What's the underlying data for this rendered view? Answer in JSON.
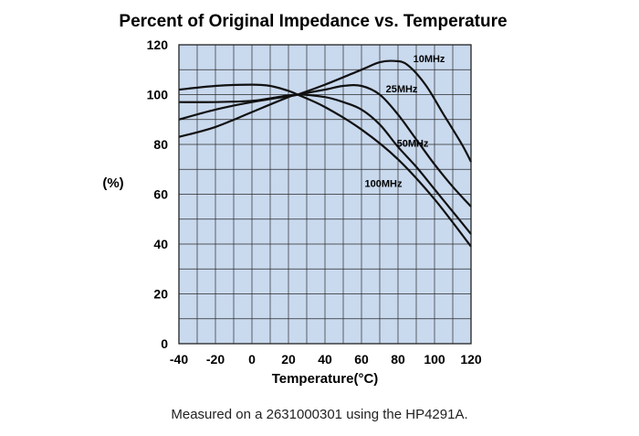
{
  "chart_data": {
    "type": "line",
    "title": "Percent of Original Impedance vs. Temperature",
    "xlabel": "Temperature(°C)",
    "ylabel": "(%)",
    "xlim": [
      -40,
      120
    ],
    "ylim": [
      0,
      120
    ],
    "x_ticks": [
      "-40",
      "-20",
      "0",
      "20",
      "40",
      "60",
      "80",
      "100",
      "120"
    ],
    "y_ticks": [
      "0",
      "20",
      "40",
      "60",
      "80",
      "100",
      "120"
    ],
    "x_tick_values": [
      -40,
      -20,
      0,
      20,
      40,
      60,
      80,
      100,
      120
    ],
    "y_tick_values": [
      0,
      20,
      40,
      60,
      80,
      100,
      120
    ],
    "grid": true,
    "plot_background": "#c9d9ee",
    "line_color": "#111111",
    "series": [
      {
        "name": "10MHz",
        "x": [
          -40,
          -20,
          0,
          20,
          25,
          40,
          60,
          70,
          78,
          85,
          95,
          105,
          115,
          120
        ],
        "y": [
          83,
          87,
          93,
          99,
          100,
          104,
          110,
          113,
          113.5,
          112,
          104,
          92,
          80,
          73
        ]
      },
      {
        "name": "25MHz",
        "x": [
          -40,
          -20,
          0,
          25,
          40,
          50,
          60,
          70,
          80,
          90,
          100,
          110,
          120
        ],
        "y": [
          90,
          94,
          97,
          100,
          102,
          103.5,
          103.5,
          100,
          92,
          82,
          72,
          63,
          55
        ]
      },
      {
        "name": "50MHz",
        "x": [
          -40,
          -20,
          0,
          10,
          25,
          40,
          50,
          60,
          70,
          80,
          90,
          100,
          110,
          120
        ],
        "y": [
          97,
          97,
          97.5,
          98.5,
          100,
          99,
          97,
          94,
          88,
          79,
          71,
          62,
          53,
          44
        ]
      },
      {
        "name": "100MHz",
        "x": [
          -40,
          -20,
          0,
          10,
          20,
          25,
          40,
          60,
          80,
          100,
          120
        ],
        "y": [
          102,
          103.5,
          104,
          103.5,
          101.5,
          100,
          95,
          86,
          74,
          58,
          39
        ]
      }
    ],
    "series_label_positions": {
      "10MHz": [
        97,
        113
      ],
      "25MHz": [
        82,
        101
      ],
      "50MHz": [
        88,
        79
      ],
      "100MHz": [
        72,
        63
      ]
    }
  },
  "caption": "Measured on a 2631000301 using the HP4291A."
}
